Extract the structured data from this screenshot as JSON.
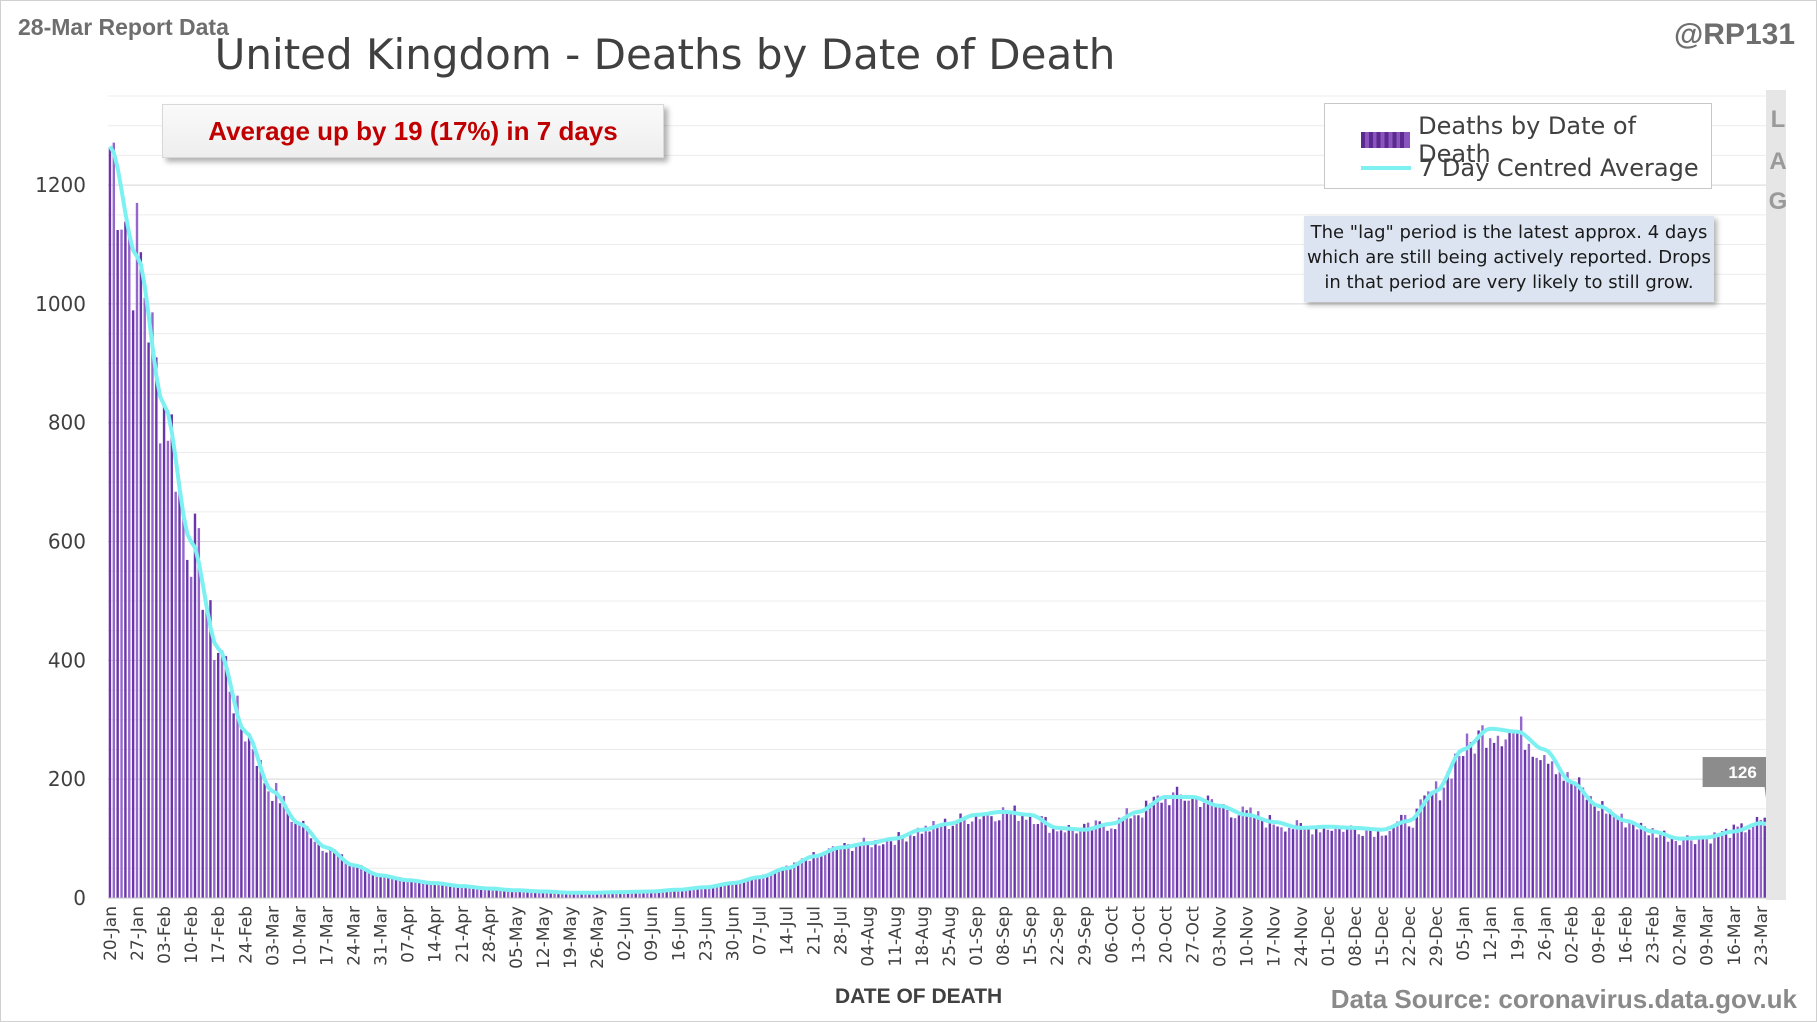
{
  "header": {
    "report_label": "28-Mar Report Data",
    "handle": "@RP131",
    "title": "United Kingdom - Deaths by Date of Death"
  },
  "callout": "Average up by 19 (17%) in 7 days",
  "legend": {
    "bars_label": "Deaths by Date of Death",
    "line_label": "7 Day Centred Average"
  },
  "note": "The \"lag\" period is the latest approx. 4 days which are still being actively reported. Drops in that period are very likely to still grow.",
  "lag_letters": [
    "L",
    "A",
    "G"
  ],
  "footer": {
    "x_axis_title": "DATE OF DEATH",
    "source": "Data Source: coronavirus.data.gov.uk"
  },
  "colors": {
    "bar": "#6a35a8",
    "bar_light": "#9566cc",
    "line": "#7df0f2",
    "callout_text": "#c00000",
    "grid": "#d9d9d9",
    "badge": "#8c8c8c"
  },
  "chart_data": {
    "type": "bar",
    "x_start": "2020-01-20",
    "x_end": "2021-03-28",
    "ylim": [
      0,
      1350
    ],
    "y_ticks": [
      0,
      200,
      400,
      600,
      800,
      1000,
      1200
    ],
    "x_tick_labels": [
      "20-Jan",
      "27-Jan",
      "03-Feb",
      "10-Feb",
      "17-Feb",
      "24-Feb",
      "03-Mar",
      "10-Mar",
      "17-Mar",
      "24-Mar",
      "31-Mar",
      "07-Apr",
      "14-Apr",
      "21-Apr",
      "28-Apr",
      "05-May",
      "12-May",
      "19-May",
      "26-May",
      "02-Jun",
      "09-Jun",
      "16-Jun",
      "23-Jun",
      "30-Jun",
      "07-Jul",
      "14-Jul",
      "21-Jul",
      "28-Jul",
      "04-Aug",
      "11-Aug",
      "18-Aug",
      "25-Aug",
      "01-Sep",
      "08-Sep",
      "15-Sep",
      "22-Sep",
      "29-Sep",
      "06-Oct",
      "13-Oct",
      "20-Oct",
      "27-Oct",
      "03-Nov",
      "10-Nov",
      "17-Nov",
      "24-Nov",
      "01-Dec",
      "08-Dec",
      "15-Dec",
      "22-Dec",
      "29-Dec",
      "05-Jan",
      "12-Jan",
      "19-Jan",
      "26-Jan",
      "02-Feb",
      "09-Feb",
      "16-Feb",
      "23-Feb",
      "02-Mar",
      "09-Mar",
      "16-Mar",
      "23-Mar"
    ],
    "weekly_avg": [
      1265,
      1080,
      830,
      600,
      420,
      280,
      180,
      125,
      85,
      55,
      38,
      30,
      25,
      20,
      16,
      13,
      11,
      9,
      9,
      10,
      11,
      14,
      18,
      25,
      35,
      50,
      70,
      85,
      92,
      100,
      115,
      125,
      140,
      145,
      140,
      118,
      115,
      125,
      145,
      170,
      170,
      155,
      140,
      128,
      118,
      120,
      118,
      115,
      130,
      180,
      250,
      285,
      280,
      250,
      195,
      155,
      130,
      112,
      100,
      102,
      112,
      126,
      110
    ],
    "series": [
      {
        "name": "Deaths by Date of Death",
        "kind": "bar"
      },
      {
        "name": "7 Day Centred Average",
        "kind": "line"
      }
    ],
    "latest_avg_label": "126",
    "xlabel": "DATE OF DEATH",
    "ylabel": "",
    "grid": true,
    "legend_position": "top-right"
  }
}
